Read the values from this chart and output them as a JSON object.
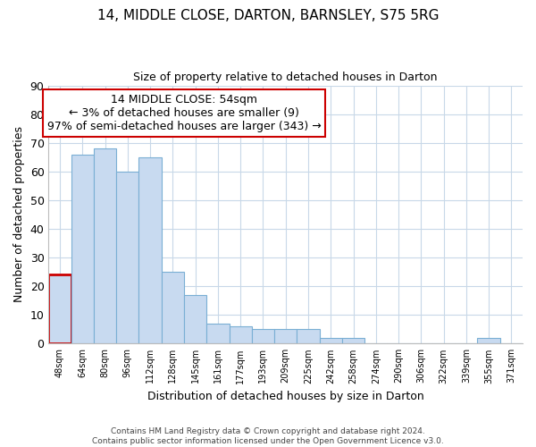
{
  "title": "14, MIDDLE CLOSE, DARTON, BARNSLEY, S75 5RG",
  "subtitle": "Size of property relative to detached houses in Darton",
  "xlabel": "Distribution of detached houses by size in Darton",
  "ylabel": "Number of detached properties",
  "bar_labels": [
    "48sqm",
    "64sqm",
    "80sqm",
    "96sqm",
    "112sqm",
    "128sqm",
    "145sqm",
    "161sqm",
    "177sqm",
    "193sqm",
    "209sqm",
    "225sqm",
    "242sqm",
    "258sqm",
    "274sqm",
    "290sqm",
    "306sqm",
    "322sqm",
    "339sqm",
    "355sqm",
    "371sqm"
  ],
  "bar_values": [
    24,
    66,
    68,
    60,
    65,
    25,
    17,
    7,
    6,
    5,
    5,
    5,
    2,
    2,
    0,
    0,
    0,
    0,
    0,
    2,
    0
  ],
  "bar_color": "#c8daf0",
  "bar_edge_color": "#7aafd4",
  "annotation_box_text": "14 MIDDLE CLOSE: 54sqm\n← 3% of detached houses are smaller (9)\n97% of semi-detached houses are larger (343) →",
  "annotation_box_edge_color": "#cc0000",
  "annotation_box_facecolor": "#ffffff",
  "highlight_bar_index": 0,
  "highlight_bar_edge_color": "#cc0000",
  "ylim": [
    0,
    90
  ],
  "yticks": [
    0,
    10,
    20,
    30,
    40,
    50,
    60,
    70,
    80,
    90
  ],
  "footer_text": "Contains HM Land Registry data © Crown copyright and database right 2024.\nContains public sector information licensed under the Open Government Licence v3.0.",
  "grid_color": "#c8d8e8",
  "background_color": "#ffffff"
}
